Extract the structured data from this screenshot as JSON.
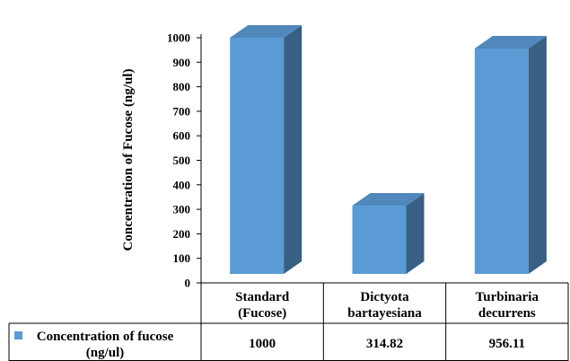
{
  "chart_data": {
    "type": "bar",
    "style": "3d-column-with-data-table",
    "categories": [
      [
        "Standard",
        "(Fucose)"
      ],
      [
        "Dictyota",
        "bartayesiana"
      ],
      [
        "Turbinaria",
        "decurrens"
      ]
    ],
    "series": [
      {
        "name_lines": [
          "Concentration of fucose",
          "(ng/ul)"
        ],
        "values": [
          1000,
          314.82,
          956.11
        ],
        "value_labels": [
          "1000",
          "314.82",
          "956.11"
        ],
        "color": "#5b9bd5"
      }
    ],
    "ylabel": "Concentration of Fucose (ng/ul)",
    "ylim": [
      0,
      1000
    ],
    "yticks": [
      0,
      100,
      200,
      300,
      400,
      500,
      600,
      700,
      800,
      900,
      1000
    ],
    "grid": false,
    "legend": "data-table-left"
  }
}
